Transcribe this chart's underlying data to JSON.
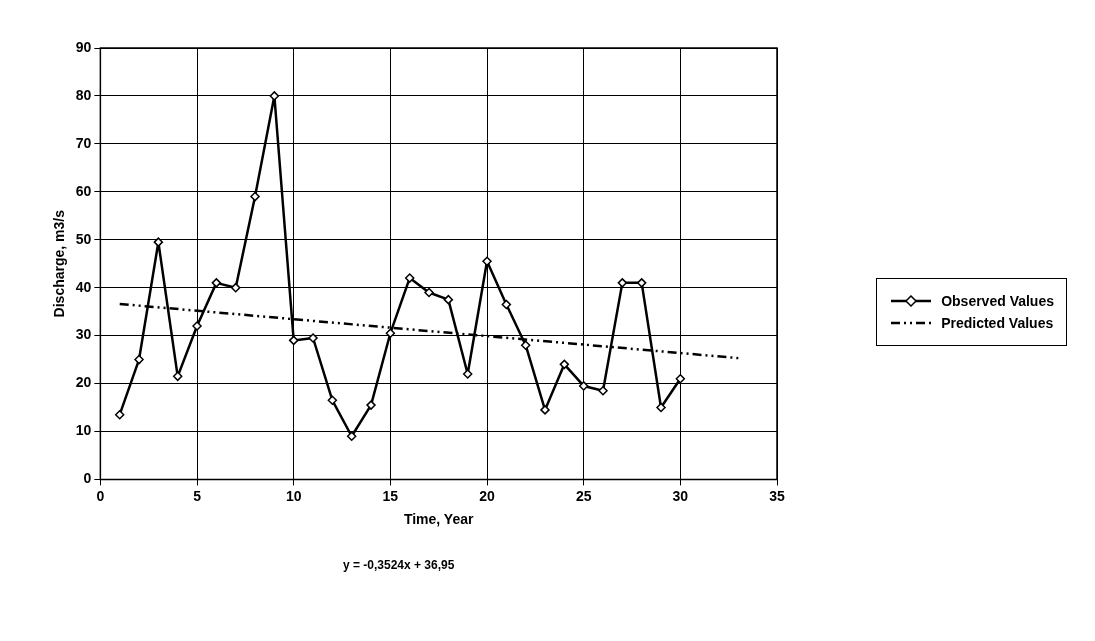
{
  "chart_data": {
    "type": "line",
    "xlabel": "Time, Year",
    "ylabel": "Discharge, m3/s",
    "annotations": [
      "y = -0,3524x + 36,95"
    ],
    "x": [
      1,
      2,
      3,
      4,
      5,
      6,
      7,
      8,
      9,
      10,
      11,
      12,
      13,
      14,
      15,
      16,
      17,
      18,
      19,
      20,
      21,
      22,
      23,
      24,
      25,
      26,
      27,
      28,
      29,
      30
    ],
    "series": [
      {
        "name": "Observed Values",
        "color": "#000000",
        "marker": "diamond",
        "line_style": "solid",
        "values": [
          13.5,
          25,
          49.5,
          21.5,
          32,
          41,
          40,
          59,
          80,
          29,
          29.5,
          16.5,
          9,
          15.5,
          30.5,
          42,
          39,
          37.5,
          22,
          45.5,
          36.5,
          28,
          14.5,
          24,
          19.5,
          18.5,
          41,
          41,
          15,
          21
        ]
      },
      {
        "name": "Predicted Values",
        "color": "#000000",
        "marker": "none",
        "line_style": "dashed",
        "x": [
          1,
          33
        ],
        "values": [
          36.6,
          25.3
        ]
      }
    ],
    "xlim": [
      0,
      35
    ],
    "xticks": [
      0,
      5,
      10,
      15,
      20,
      25,
      30,
      35
    ],
    "ylim": [
      0,
      90
    ],
    "yticks": [
      0,
      10,
      20,
      30,
      40,
      50,
      60,
      70,
      80,
      90
    ],
    "grid": true,
    "legend": "right"
  }
}
